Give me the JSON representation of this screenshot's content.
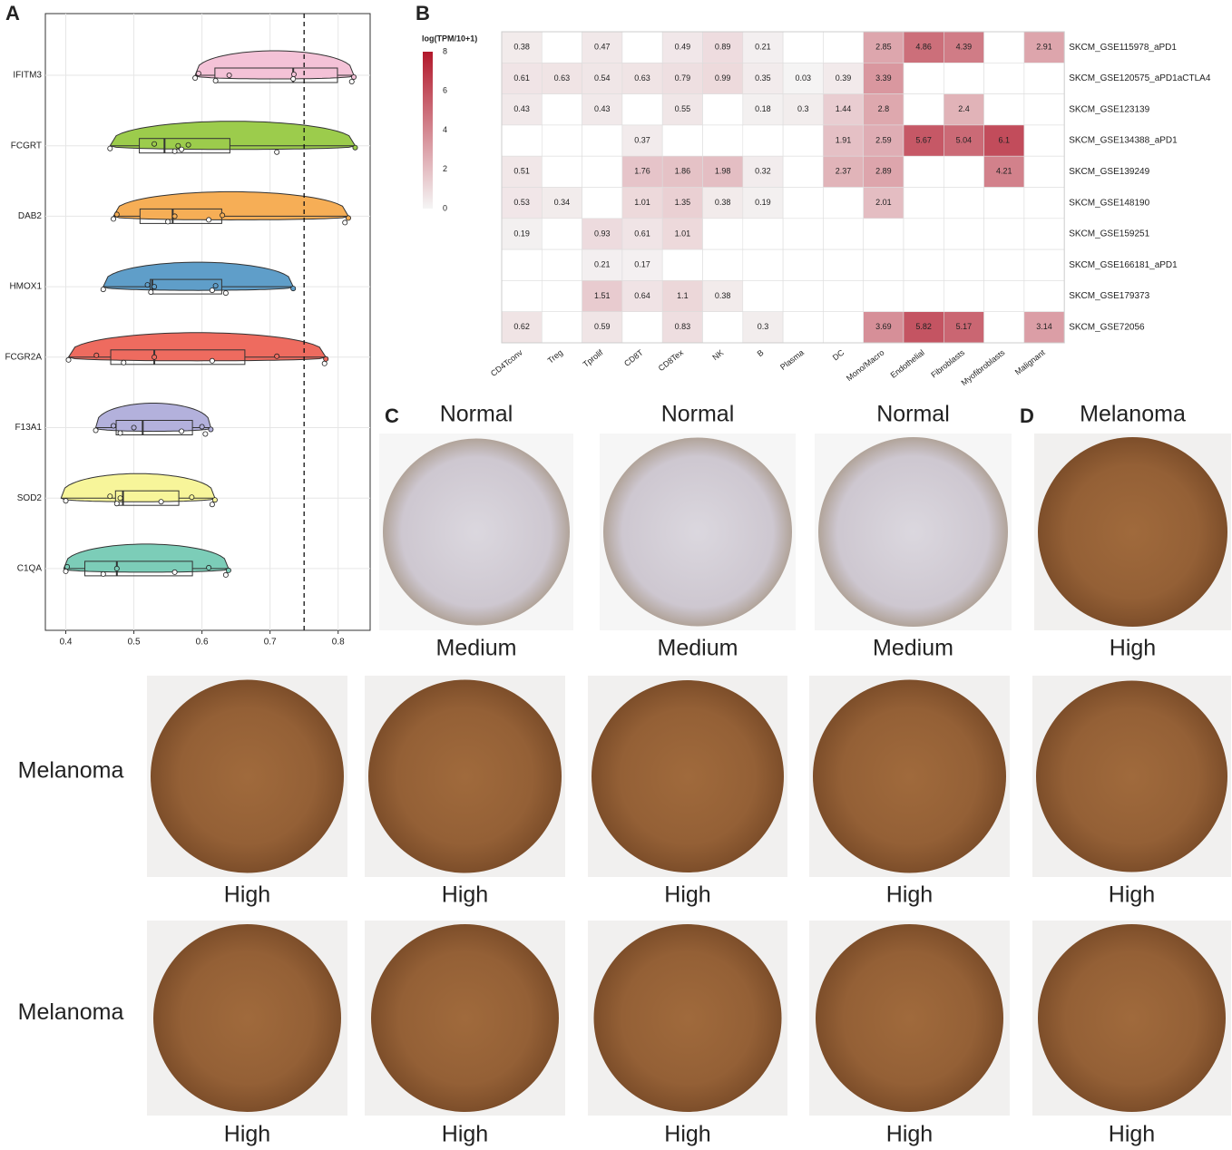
{
  "panels": [
    "A",
    "B",
    "C",
    "D"
  ],
  "chart_data": [
    {
      "type": "violin",
      "orientation": "horizontal",
      "categories": [
        "IFITM3",
        "FCGRT",
        "DAB2",
        "HMOX1",
        "FCGR2A",
        "F13A1",
        "SOD2",
        "C1QA"
      ],
      "colors": [
        "#f4c2d7",
        "#9ccc4c",
        "#f6ae56",
        "#5f9ec9",
        "#ee6b5f",
        "#b3b1dc",
        "#f7f59a",
        "#7ccdb8"
      ],
      "stats": [
        {
          "min": 0.59,
          "q1": 0.619,
          "median": 0.734,
          "q3": 0.799,
          "max": 0.823,
          "points": [
            0.59,
            0.595,
            0.62,
            0.64,
            0.734,
            0.735,
            0.82,
            0.823
          ]
        },
        {
          "min": 0.465,
          "q1": 0.508,
          "median": 0.545,
          "q3": 0.641,
          "max": 0.825,
          "points": [
            0.465,
            0.53,
            0.56,
            0.565,
            0.57,
            0.58,
            0.71,
            0.825
          ]
        },
        {
          "min": 0.47,
          "q1": 0.509,
          "median": 0.557,
          "q3": 0.629,
          "max": 0.815,
          "points": [
            0.47,
            0.475,
            0.55,
            0.56,
            0.61,
            0.63,
            0.81,
            0.815
          ]
        },
        {
          "min": 0.455,
          "q1": 0.524,
          "median": 0.527,
          "q3": 0.629,
          "max": 0.734,
          "points": [
            0.455,
            0.52,
            0.525,
            0.53,
            0.615,
            0.62,
            0.635,
            0.734
          ]
        },
        {
          "min": 0.404,
          "q1": 0.466,
          "median": 0.53,
          "q3": 0.663,
          "max": 0.782,
          "points": [
            0.404,
            0.445,
            0.485,
            0.53,
            0.615,
            0.71,
            0.78,
            0.782
          ]
        },
        {
          "min": 0.444,
          "q1": 0.474,
          "median": 0.513,
          "q3": 0.586,
          "max": 0.613,
          "points": [
            0.444,
            0.47,
            0.48,
            0.5,
            0.57,
            0.6,
            0.605,
            0.613
          ]
        },
        {
          "min": 0.393,
          "q1": 0.473,
          "median": 0.484,
          "q3": 0.566,
          "max": 0.619,
          "points": [
            0.4,
            0.465,
            0.475,
            0.48,
            0.54,
            0.585,
            0.615,
            0.619
          ]
        },
        {
          "min": 0.397,
          "q1": 0.428,
          "median": 0.475,
          "q3": 0.586,
          "max": 0.639,
          "points": [
            0.4,
            0.402,
            0.455,
            0.475,
            0.56,
            0.61,
            0.635,
            0.639
          ]
        }
      ],
      "xlim": [
        0.37,
        0.847
      ],
      "xticks": [
        0.4,
        0.5,
        0.6,
        0.7,
        0.8
      ],
      "reference_line": 0.75,
      "grid": true
    },
    {
      "type": "heatmap",
      "title": "log(TPM/10+1)",
      "columns": [
        "CD4Tconv",
        "Treg",
        "Tprolif",
        "CD8T",
        "CD8Tex",
        "NK",
        "B",
        "Plasma",
        "DC",
        "Mono/Macro",
        "Endothelial",
        "Fibroblasts",
        "Myofibroblasts",
        "Malignant"
      ],
      "rows": [
        "SKCM_GSE115978_aPD1",
        "SKCM_GSE120575_aPD1aCTLA4",
        "SKCM_GSE123139",
        "SKCM_GSE134388_aPD1",
        "SKCM_GSE139249",
        "SKCM_GSE148190",
        "SKCM_GSE159251",
        "SKCM_GSE166181_aPD1",
        "SKCM_GSE179373",
        "SKCM_GSE72056"
      ],
      "values": [
        [
          0.38,
          null,
          0.47,
          null,
          0.49,
          0.89,
          0.21,
          null,
          null,
          2.85,
          4.86,
          4.39,
          null,
          2.91
        ],
        [
          0.61,
          0.63,
          0.54,
          0.63,
          0.79,
          0.99,
          0.35,
          0.03,
          0.39,
          3.39,
          null,
          null,
          null,
          null
        ],
        [
          0.43,
          null,
          0.43,
          null,
          0.55,
          null,
          0.18,
          0.3,
          1.44,
          2.8,
          null,
          2.4,
          null,
          null
        ],
        [
          null,
          null,
          null,
          0.37,
          null,
          null,
          null,
          null,
          1.91,
          2.59,
          5.67,
          5.04,
          6.1,
          null
        ],
        [
          0.51,
          null,
          null,
          1.76,
          1.86,
          1.98,
          0.32,
          null,
          2.37,
          2.89,
          null,
          null,
          4.21,
          null
        ],
        [
          0.53,
          0.34,
          null,
          1.01,
          1.35,
          0.38,
          0.19,
          null,
          null,
          2.01,
          null,
          null,
          null,
          null
        ],
        [
          0.19,
          null,
          0.93,
          0.61,
          1.01,
          null,
          null,
          null,
          null,
          null,
          null,
          null,
          null,
          null
        ],
        [
          null,
          null,
          0.21,
          0.17,
          null,
          null,
          null,
          null,
          null,
          null,
          null,
          null,
          null,
          null
        ],
        [
          null,
          null,
          1.51,
          0.64,
          1.1,
          0.38,
          null,
          null,
          null,
          null,
          null,
          null,
          null,
          null
        ],
        [
          0.62,
          null,
          0.59,
          null,
          0.83,
          null,
          0.3,
          null,
          null,
          3.69,
          5.82,
          5.17,
          null,
          3.14
        ]
      ],
      "colorscale": [
        "#f5f5f5",
        "#b2182b"
      ],
      "clim": [
        0,
        8
      ],
      "cticks": [
        0,
        2,
        4,
        6,
        8
      ]
    }
  ],
  "tissue_panel": {
    "headers": [
      "Normal",
      "Normal",
      "Normal",
      "Melanoma"
    ],
    "header_colors": [
      "#27308a",
      "#27308a",
      "#27308a",
      "#e3151d"
    ],
    "row_labels": [
      "Melanoma",
      "Melanoma"
    ],
    "row_label_color": "#e3151d",
    "grades": [
      [
        "Medium",
        "Medium",
        "Medium",
        "High"
      ],
      [
        "High",
        "High",
        "High",
        "High",
        "High"
      ],
      [
        "High",
        "High",
        "High",
        "High",
        "High"
      ]
    ]
  }
}
